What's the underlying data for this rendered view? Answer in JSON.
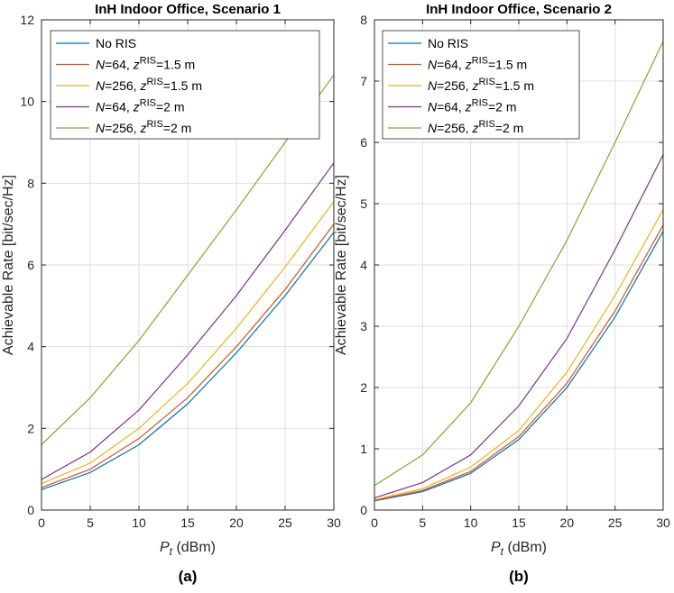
{
  "chart_data": [
    {
      "type": "line",
      "title": "InH Indoor Office, Scenario 1",
      "caption": "(a)",
      "xlabel_symbol": "P",
      "xlabel_sub": "t",
      "xlabel_unit": " (dBm)",
      "ylabel": "Achievable Rate [bit/sec/Hz]",
      "x": [
        0,
        5,
        10,
        15,
        20,
        25,
        30
      ],
      "xlim": [
        0,
        30
      ],
      "ylim": [
        0,
        12
      ],
      "xticks": [
        0,
        5,
        10,
        15,
        20,
        25,
        30
      ],
      "yticks": [
        0,
        2,
        4,
        6,
        8,
        10,
        12
      ],
      "grid": true,
      "legend_position": "top-left",
      "series": [
        {
          "name": "No RIS",
          "label_parts": [
            "No RIS"
          ],
          "color": "#0072BD",
          "values": [
            0.5,
            0.92,
            1.6,
            2.6,
            3.85,
            5.25,
            6.8
          ]
        },
        {
          "name": "N=64, zRIS=1.5 m",
          "label_parts": [
            "N",
            "=64, ",
            "z",
            "RIS",
            "=1.5 m"
          ],
          "color": "#D95319",
          "values": [
            0.55,
            1.0,
            1.75,
            2.75,
            4.0,
            5.4,
            7.0
          ]
        },
        {
          "name": "N=256, zRIS=1.5 m",
          "label_parts": [
            "N",
            "=256, ",
            "z",
            "RIS",
            "=1.5 m"
          ],
          "color": "#EDB120",
          "values": [
            0.65,
            1.15,
            2.0,
            3.1,
            4.45,
            5.95,
            7.55
          ]
        },
        {
          "name": "N=64, zRIS=2 m",
          "label_parts": [
            "N",
            "=64, ",
            "z",
            "RIS",
            "=2 m"
          ],
          "color": "#7E2F8E",
          "values": [
            0.75,
            1.42,
            2.45,
            3.8,
            5.25,
            6.85,
            8.5
          ]
        },
        {
          "name": "N=256, zRIS=2 m",
          "label_parts": [
            "N",
            "=256, ",
            "z",
            "RIS",
            "=2 m"
          ],
          "color": "#77AC30",
          "values": [
            1.6,
            2.75,
            4.15,
            5.75,
            7.35,
            9.0,
            10.65
          ]
        }
      ]
    },
    {
      "type": "line",
      "title": "InH Indoor Office, Scenario 2",
      "caption": "(b)",
      "xlabel_symbol": "P",
      "xlabel_sub": "t",
      "xlabel_unit": " (dBm)",
      "ylabel": "Achievable Rate [bit/sec/Hz]",
      "x": [
        0,
        5,
        10,
        15,
        20,
        25,
        30
      ],
      "xlim": [
        0,
        30
      ],
      "ylim": [
        0,
        8
      ],
      "xticks": [
        0,
        5,
        10,
        15,
        20,
        25,
        30
      ],
      "yticks": [
        0,
        1,
        2,
        3,
        4,
        5,
        6,
        7,
        8
      ],
      "grid": true,
      "legend_position": "top-left",
      "series": [
        {
          "name": "No RIS",
          "label_parts": [
            "No RIS"
          ],
          "color": "#0072BD",
          "values": [
            0.15,
            0.3,
            0.6,
            1.15,
            2.0,
            3.15,
            4.55
          ]
        },
        {
          "name": "N=64, zRIS=1.5 m",
          "label_parts": [
            "N",
            "=64, ",
            "z",
            "RIS",
            "=1.5 m"
          ],
          "color": "#D95319",
          "values": [
            0.16,
            0.32,
            0.63,
            1.2,
            2.07,
            3.25,
            4.65
          ]
        },
        {
          "name": "N=256, zRIS=1.5 m",
          "label_parts": [
            "N",
            "=256, ",
            "z",
            "RIS",
            "=1.5 m"
          ],
          "color": "#EDB120",
          "values": [
            0.17,
            0.35,
            0.7,
            1.3,
            2.25,
            3.5,
            4.9
          ]
        },
        {
          "name": "N=64, zRIS=2 m",
          "label_parts": [
            "N",
            "=64, ",
            "z",
            "RIS",
            "=2 m"
          ],
          "color": "#7E2F8E",
          "values": [
            0.2,
            0.45,
            0.9,
            1.7,
            2.8,
            4.25,
            5.8
          ]
        },
        {
          "name": "N=256, zRIS=2 m",
          "label_parts": [
            "N",
            "=256, ",
            "z",
            "RIS",
            "=2 m"
          ],
          "color": "#77AC30",
          "values": [
            0.4,
            0.9,
            1.75,
            3.0,
            4.4,
            6.0,
            7.65
          ]
        }
      ]
    }
  ]
}
